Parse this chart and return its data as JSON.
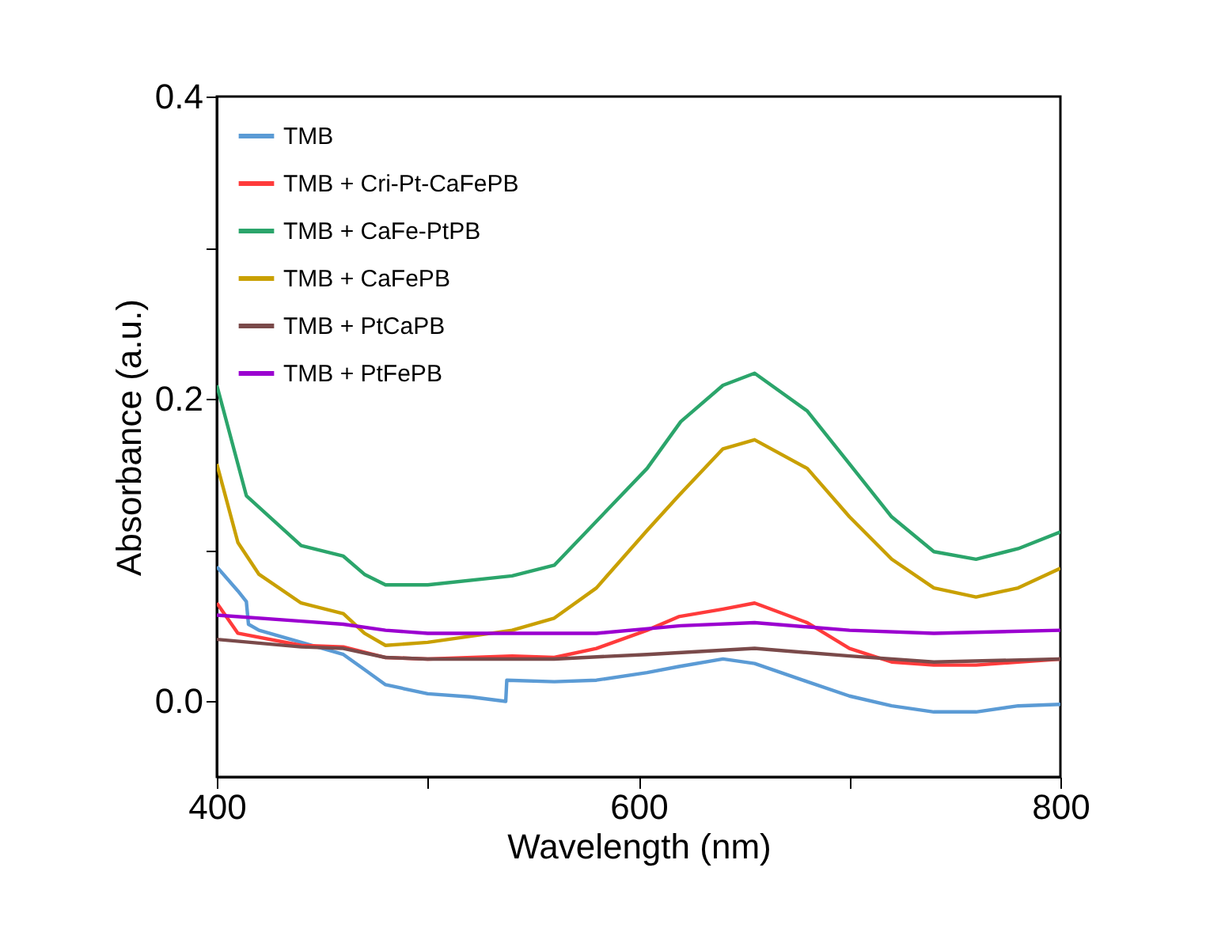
{
  "chart_data": {
    "type": "line",
    "xlabel": "Wavelength (nm)",
    "ylabel": "Absorbance (a.u.)",
    "xlim": [
      400,
      800
    ],
    "ylim": [
      -0.05,
      0.4
    ],
    "xticks": [
      400,
      {
        "value": 500,
        "label": null
      },
      600,
      {
        "value": 700,
        "label": null
      },
      800
    ],
    "yticks": [
      {
        "value": 0,
        "label": "0.0"
      },
      {
        "value": 0.1,
        "label": null
      },
      {
        "value": 0.2,
        "label": "0.2"
      },
      {
        "value": 0.3,
        "label": null
      },
      {
        "value": 0.4,
        "label": "0.4"
      }
    ],
    "grid": false,
    "legend": "top left",
    "marker": "none",
    "line_style": "solid",
    "series": [
      {
        "name": "TMB",
        "color": "#5b9bd5",
        "x": [
          400,
          410,
          414,
          415,
          420,
          440,
          460,
          470,
          480,
          500,
          520,
          537,
          537.5,
          560,
          580,
          604,
          619,
          640,
          655,
          680,
          700,
          720,
          740,
          760,
          780,
          800
        ],
        "values": [
          0.089,
          0.073,
          0.066,
          0.051,
          0.047,
          0.039,
          0.031,
          0.021,
          0.011,
          0.005,
          0.003,
          0.0,
          0.014,
          0.013,
          0.014,
          0.019,
          0.023,
          0.028,
          0.025,
          0.013,
          0.0035,
          -0.003,
          -0.007,
          -0.007,
          -0.003,
          -0.002
        ]
      },
      {
        "name": "TMB + Cri-Pt-CaFePB",
        "color": "#ff3b3b",
        "x": [
          400,
          410,
          440,
          460,
          480,
          500,
          540,
          560,
          580,
          604,
          619,
          640,
          655,
          680,
          700,
          720,
          740,
          760,
          780,
          800
        ],
        "values": [
          0.065,
          0.045,
          0.037,
          0.036,
          0.029,
          0.028,
          0.03,
          0.029,
          0.035,
          0.047,
          0.056,
          0.061,
          0.065,
          0.052,
          0.035,
          0.026,
          0.024,
          0.024,
          0.026,
          0.028
        ]
      },
      {
        "name": "TMB + CaFe-PtPB",
        "color": "#2ba56b",
        "x": [
          400,
          414,
          440,
          460,
          470,
          480,
          500,
          540,
          560,
          604,
          620,
          640,
          655,
          680,
          700,
          720,
          740,
          760,
          780,
          800
        ],
        "values": [
          0.209,
          0.136,
          0.103,
          0.096,
          0.084,
          0.077,
          0.077,
          0.083,
          0.09,
          0.154,
          0.185,
          0.209,
          0.217,
          0.192,
          0.157,
          0.122,
          0.099,
          0.094,
          0.101,
          0.112
        ]
      },
      {
        "name": "TMB + CaFePB",
        "color": "#c9a000",
        "x": [
          400,
          410,
          420,
          440,
          460,
          470,
          480,
          500,
          540,
          560,
          580,
          604,
          619,
          640,
          655,
          680,
          700,
          720,
          740,
          760,
          780,
          800
        ],
        "values": [
          0.157,
          0.105,
          0.084,
          0.065,
          0.058,
          0.045,
          0.037,
          0.039,
          0.047,
          0.055,
          0.075,
          0.113,
          0.136,
          0.167,
          0.173,
          0.154,
          0.122,
          0.094,
          0.075,
          0.069,
          0.075,
          0.088
        ]
      },
      {
        "name": "TMB + PtCaPB",
        "color": "#7a4a4a",
        "x": [
          400,
          440,
          460,
          480,
          500,
          560,
          604,
          655,
          700,
          740,
          800
        ],
        "values": [
          0.041,
          0.036,
          0.035,
          0.029,
          0.028,
          0.028,
          0.031,
          0.035,
          0.03,
          0.026,
          0.028
        ]
      },
      {
        "name": "TMB + PtFePB",
        "color": "#9b00d0",
        "x": [
          400,
          440,
          460,
          480,
          500,
          540,
          580,
          620,
          655,
          700,
          740,
          800
        ],
        "values": [
          0.057,
          0.053,
          0.051,
          0.047,
          0.045,
          0.045,
          0.045,
          0.05,
          0.052,
          0.047,
          0.045,
          0.047
        ]
      }
    ]
  }
}
